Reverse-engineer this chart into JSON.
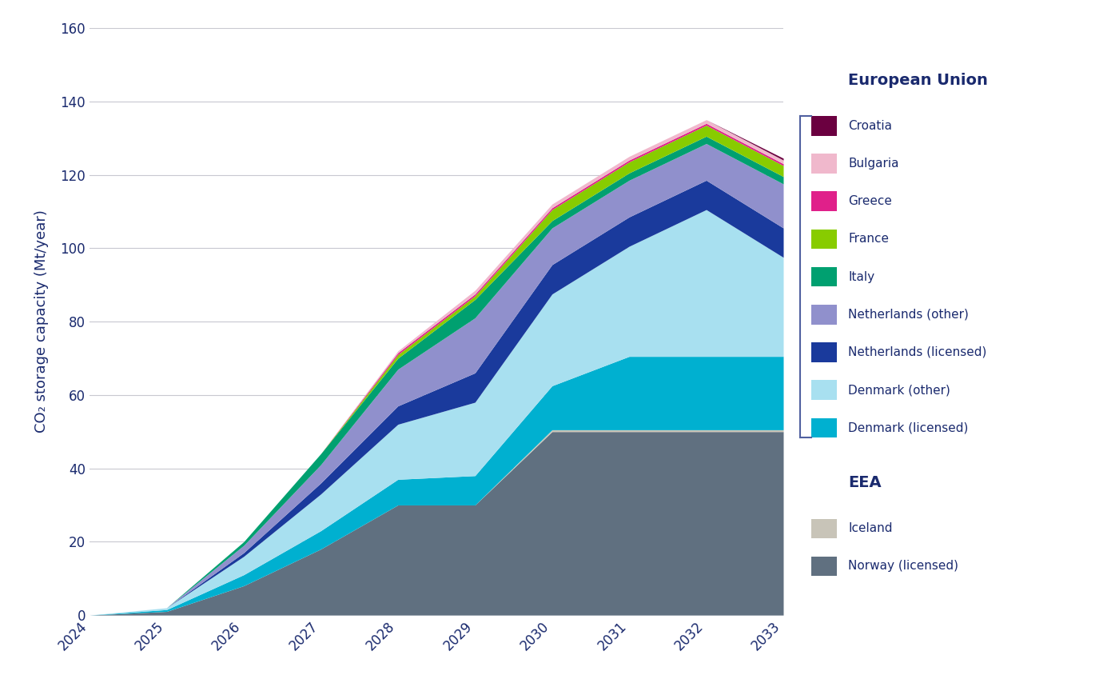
{
  "years": [
    2024,
    2025,
    2026,
    2027,
    2028,
    2029,
    2030,
    2031,
    2032,
    2033
  ],
  "series": {
    "Norway (licensed)": [
      0,
      1,
      8,
      18,
      30,
      30,
      50,
      50,
      50,
      50
    ],
    "Iceland": [
      0,
      0,
      0,
      0,
      0,
      0,
      0.5,
      0.5,
      0.5,
      0.5
    ],
    "Denmark (licensed)": [
      0,
      0.5,
      3,
      5,
      7,
      8,
      12,
      20,
      20,
      20
    ],
    "Denmark (other)": [
      0,
      0.5,
      5,
      10,
      15,
      20,
      25,
      30,
      40,
      27
    ],
    "Netherlands (licensed)": [
      0,
      0,
      1,
      3,
      5,
      8,
      8,
      8,
      8,
      8
    ],
    "Netherlands (other)": [
      0,
      0,
      2,
      5,
      10,
      15,
      10,
      10,
      10,
      12
    ],
    "Italy": [
      0,
      0,
      1,
      3,
      3,
      5,
      2,
      2,
      2,
      2
    ],
    "France": [
      0,
      0,
      0,
      0,
      1,
      1,
      3,
      3,
      3,
      3
    ],
    "Greece": [
      0,
      0,
      0,
      0,
      0.5,
      0.5,
      0.5,
      0.5,
      0.5,
      0.5
    ],
    "Bulgaria": [
      0,
      0,
      0,
      0,
      0.5,
      1,
      1,
      1,
      1,
      1
    ],
    "Croatia": [
      0,
      0,
      0,
      0,
      0,
      0,
      0,
      0,
      0,
      0.5
    ]
  },
  "colors": {
    "Norway (licensed)": "#607080",
    "Iceland": "#c8c4b8",
    "Denmark (licensed)": "#00b0d0",
    "Denmark (other)": "#a8e0f0",
    "Netherlands (licensed)": "#1a3a9c",
    "Netherlands (other)": "#9090cc",
    "Italy": "#00a070",
    "France": "#88cc00",
    "Greece": "#e0208a",
    "Bulgaria": "#f0b8cc",
    "Croatia": "#6b0040"
  },
  "stack_order": [
    "Norway (licensed)",
    "Iceland",
    "Denmark (licensed)",
    "Denmark (other)",
    "Netherlands (licensed)",
    "Netherlands (other)",
    "Italy",
    "France",
    "Greece",
    "Bulgaria",
    "Croatia"
  ],
  "ylabel": "CO₂ storage capacity (Mt/year)",
  "ylim": [
    0,
    160
  ],
  "yticks": [
    0,
    20,
    40,
    60,
    80,
    100,
    120,
    140,
    160
  ],
  "title_eu": "European Union",
  "title_eea": "EEA",
  "text_color": "#1a2a6e",
  "bg_color": "#ffffff",
  "grid_color": "#c8c8d0",
  "eu_items": [
    [
      "Croatia",
      "#6b0040"
    ],
    [
      "Bulgaria",
      "#f0b8cc"
    ],
    [
      "Greece",
      "#e0208a"
    ],
    [
      "France",
      "#88cc00"
    ],
    [
      "Italy",
      "#00a070"
    ],
    [
      "Netherlands (other)",
      "#9090cc"
    ],
    [
      "Netherlands (licensed)",
      "#1a3a9c"
    ],
    [
      "Denmark (other)",
      "#a8e0f0"
    ],
    [
      "Denmark (licensed)",
      "#00b0d0"
    ]
  ],
  "eea_items": [
    [
      "Iceland",
      "#c8c4b8"
    ],
    [
      "Norway (licensed)",
      "#607080"
    ]
  ],
  "bracket_color": "#5060a0"
}
